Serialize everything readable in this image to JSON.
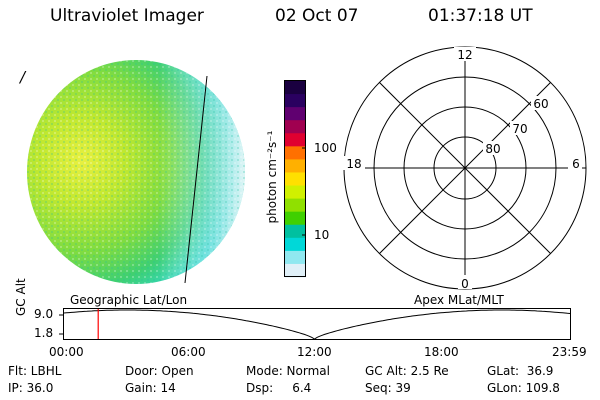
{
  "header": {
    "instrument": "Ultraviolet Imager",
    "date": "02 Oct 07",
    "time": "01:37:18 UT"
  },
  "image_panel": {
    "marker": "/",
    "projection_label": "Geographic Lat/Lon"
  },
  "colorbar": {
    "unit_label": "photon cm⁻²s⁻¹",
    "ticks": [
      "100",
      "10"
    ],
    "scale": "log",
    "colors": [
      "#1a0040",
      "#2a0060",
      "#600070",
      "#a00050",
      "#e00030",
      "#ff7000",
      "#ffb000",
      "#ffe000",
      "#d0f000",
      "#90e000",
      "#40d000",
      "#00c0a0",
      "#00d8d8",
      "#90e8f0",
      "#e0f0f8"
    ]
  },
  "polar_grid": {
    "projection_label": "Apex MLat/MLT",
    "mlt_labels": {
      "top": "12",
      "bottom": "0",
      "left": "18",
      "right": "6"
    },
    "mlat_labels": [
      "60",
      "70",
      "80"
    ]
  },
  "orbit_plot": {
    "ylabel": "GC Alt",
    "yticks": [
      "9.0",
      "1.8"
    ],
    "xticks": [
      "00:00",
      "06:00",
      "12:00",
      "18:00",
      "23:59"
    ],
    "current_time_marker_color": "#ff0000"
  },
  "info": {
    "flt": "Flt: LBHL",
    "ip": "IP: 36.0",
    "door": "Door: Open",
    "gain": "Gain: 14",
    "mode": "Mode: Normal",
    "dsp": "Dsp:     6.4",
    "gc_alt": "GC Alt: 2.5 Re",
    "seq": "Seq: 39",
    "glat": "GLat:  36.9",
    "glon": "GLon: 109.8"
  }
}
